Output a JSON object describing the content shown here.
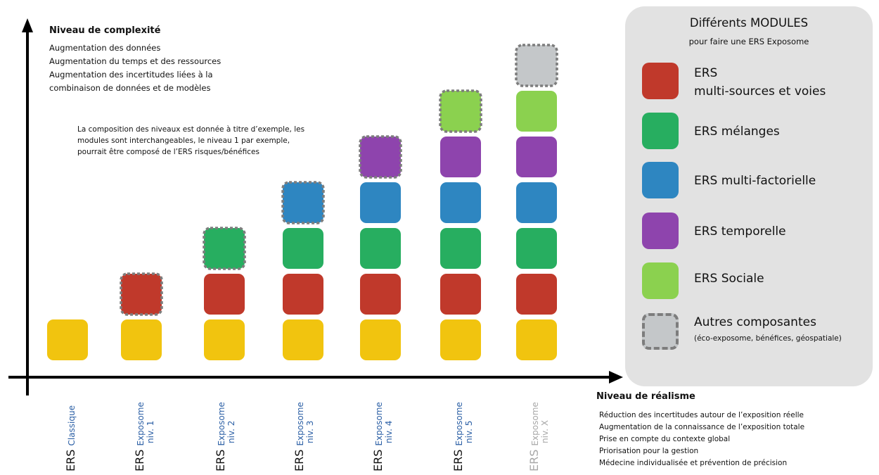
{
  "y_axis": {
    "title": "Niveau de complexité",
    "lines": [
      "Augmentation des données",
      "Augmentation du temps et des ressources",
      "Augmentation des incertitudes liées à la",
      "combinaison de données et de modèles"
    ]
  },
  "note": {
    "lines": [
      "La composition des niveaux est donnée à titre d’exemple, les",
      "modules sont interchangeables, le niveau 1 par exemple,",
      "pourrait être composé de l’ERS risques/bénéfices"
    ]
  },
  "x_axis": {
    "title": "Niveau de réalisme",
    "lines": [
      "Réduction des incertitudes autour de l’exposition réelle",
      "Augmentation de la connaissance de l’exposition totale",
      "Prise en compte du contexte global",
      "Priorisation pour la gestion",
      "Médecine individualisée et prévention de précision"
    ]
  },
  "legend": {
    "title": "Différents MODULES",
    "subtitle": "pour faire une ERS Exposome",
    "items": [
      {
        "key": "multi",
        "color": "#c0392b",
        "label1": "ERS",
        "label2": "multi-sources et voies"
      },
      {
        "key": "melanges",
        "color": "#27ae60",
        "label1": "ERS mélanges"
      },
      {
        "key": "factorielle",
        "color": "#2e86c1",
        "label1": "ERS multi-factorielle"
      },
      {
        "key": "temporelle",
        "color": "#8e44ad",
        "label1": "ERS temporelle"
      },
      {
        "key": "sociale",
        "color": "#8bd14f",
        "label1": "ERS Sociale"
      },
      {
        "key": "autres",
        "color": "#c4c7c9",
        "label1": "Autres composantes",
        "note": "(éco-exposome, bénéfices, géospatiale)",
        "dashed": true
      }
    ]
  },
  "colors": {
    "base": "#f1c40f",
    "multi": "#c0392b",
    "melanges": "#27ae60",
    "factorielle": "#2e86c1",
    "temporelle": "#8e44ad",
    "sociale": "#8bd14f",
    "autres": "#c4c7c9"
  },
  "chart_data": {
    "type": "bar",
    "categories": [
      {
        "main": "ERS",
        "sub": "Classique",
        "line2": ""
      },
      {
        "main": "ERS",
        "sub": "Exposome",
        "line2": "niv. 1"
      },
      {
        "main": "ERS",
        "sub": "Exposome",
        "line2": "niv. 2"
      },
      {
        "main": "ERS",
        "sub": "Exposome",
        "line2": "niv. 3"
      },
      {
        "main": "ERS",
        "sub": "Exposome",
        "line2": "niv. 4"
      },
      {
        "main": "ERS",
        "sub": "Exposome",
        "line2": "niv. 5"
      },
      {
        "main": "ERS",
        "sub": "Exposome",
        "line2": "niv. X",
        "faded": true
      }
    ],
    "stacks": [
      [
        "base"
      ],
      [
        "base",
        "multi"
      ],
      [
        "base",
        "multi",
        "melanges"
      ],
      [
        "base",
        "multi",
        "melanges",
        "factorielle"
      ],
      [
        "base",
        "multi",
        "melanges",
        "factorielle",
        "temporelle"
      ],
      [
        "base",
        "multi",
        "melanges",
        "factorielle",
        "temporelle",
        "sociale"
      ],
      [
        "base",
        "multi",
        "melanges",
        "factorielle",
        "temporelle",
        "sociale",
        "autres"
      ]
    ]
  }
}
